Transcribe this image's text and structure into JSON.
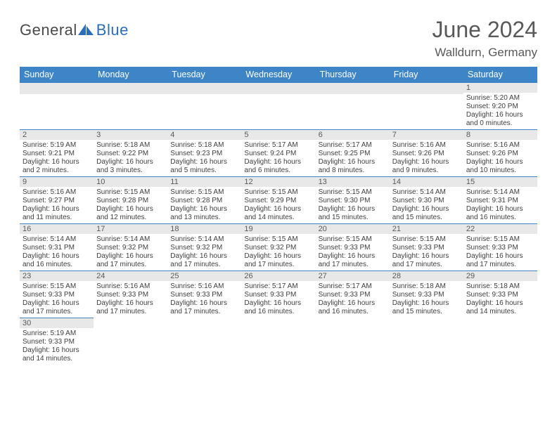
{
  "logo": {
    "text1": "General",
    "text2": "Blue"
  },
  "title": "June 2024",
  "location": "Walldurn, Germany",
  "colors": {
    "header_bg": "#3d85c6",
    "header_fg": "#ffffff",
    "daybar_bg": "#e8e8e8",
    "text": "#404040",
    "title_color": "#595959",
    "border": "#3d85c6"
  },
  "weekdays": [
    "Sunday",
    "Monday",
    "Tuesday",
    "Wednesday",
    "Thursday",
    "Friday",
    "Saturday"
  ],
  "weeks": [
    [
      null,
      null,
      null,
      null,
      null,
      null,
      {
        "n": "1",
        "sunrise": "5:20 AM",
        "sunset": "9:20 PM",
        "dl": "16 hours and 0 minutes."
      }
    ],
    [
      {
        "n": "2",
        "sunrise": "5:19 AM",
        "sunset": "9:21 PM",
        "dl": "16 hours and 2 minutes."
      },
      {
        "n": "3",
        "sunrise": "5:18 AM",
        "sunset": "9:22 PM",
        "dl": "16 hours and 3 minutes."
      },
      {
        "n": "4",
        "sunrise": "5:18 AM",
        "sunset": "9:23 PM",
        "dl": "16 hours and 5 minutes."
      },
      {
        "n": "5",
        "sunrise": "5:17 AM",
        "sunset": "9:24 PM",
        "dl": "16 hours and 6 minutes."
      },
      {
        "n": "6",
        "sunrise": "5:17 AM",
        "sunset": "9:25 PM",
        "dl": "16 hours and 8 minutes."
      },
      {
        "n": "7",
        "sunrise": "5:16 AM",
        "sunset": "9:26 PM",
        "dl": "16 hours and 9 minutes."
      },
      {
        "n": "8",
        "sunrise": "5:16 AM",
        "sunset": "9:26 PM",
        "dl": "16 hours and 10 minutes."
      }
    ],
    [
      {
        "n": "9",
        "sunrise": "5:16 AM",
        "sunset": "9:27 PM",
        "dl": "16 hours and 11 minutes."
      },
      {
        "n": "10",
        "sunrise": "5:15 AM",
        "sunset": "9:28 PM",
        "dl": "16 hours and 12 minutes."
      },
      {
        "n": "11",
        "sunrise": "5:15 AM",
        "sunset": "9:28 PM",
        "dl": "16 hours and 13 minutes."
      },
      {
        "n": "12",
        "sunrise": "5:15 AM",
        "sunset": "9:29 PM",
        "dl": "16 hours and 14 minutes."
      },
      {
        "n": "13",
        "sunrise": "5:15 AM",
        "sunset": "9:30 PM",
        "dl": "16 hours and 15 minutes."
      },
      {
        "n": "14",
        "sunrise": "5:14 AM",
        "sunset": "9:30 PM",
        "dl": "16 hours and 15 minutes."
      },
      {
        "n": "15",
        "sunrise": "5:14 AM",
        "sunset": "9:31 PM",
        "dl": "16 hours and 16 minutes."
      }
    ],
    [
      {
        "n": "16",
        "sunrise": "5:14 AM",
        "sunset": "9:31 PM",
        "dl": "16 hours and 16 minutes."
      },
      {
        "n": "17",
        "sunrise": "5:14 AM",
        "sunset": "9:32 PM",
        "dl": "16 hours and 17 minutes."
      },
      {
        "n": "18",
        "sunrise": "5:14 AM",
        "sunset": "9:32 PM",
        "dl": "16 hours and 17 minutes."
      },
      {
        "n": "19",
        "sunrise": "5:15 AM",
        "sunset": "9:32 PM",
        "dl": "16 hours and 17 minutes."
      },
      {
        "n": "20",
        "sunrise": "5:15 AM",
        "sunset": "9:33 PM",
        "dl": "16 hours and 17 minutes."
      },
      {
        "n": "21",
        "sunrise": "5:15 AM",
        "sunset": "9:33 PM",
        "dl": "16 hours and 17 minutes."
      },
      {
        "n": "22",
        "sunrise": "5:15 AM",
        "sunset": "9:33 PM",
        "dl": "16 hours and 17 minutes."
      }
    ],
    [
      {
        "n": "23",
        "sunrise": "5:15 AM",
        "sunset": "9:33 PM",
        "dl": "16 hours and 17 minutes."
      },
      {
        "n": "24",
        "sunrise": "5:16 AM",
        "sunset": "9:33 PM",
        "dl": "16 hours and 17 minutes."
      },
      {
        "n": "25",
        "sunrise": "5:16 AM",
        "sunset": "9:33 PM",
        "dl": "16 hours and 17 minutes."
      },
      {
        "n": "26",
        "sunrise": "5:17 AM",
        "sunset": "9:33 PM",
        "dl": "16 hours and 16 minutes."
      },
      {
        "n": "27",
        "sunrise": "5:17 AM",
        "sunset": "9:33 PM",
        "dl": "16 hours and 16 minutes."
      },
      {
        "n": "28",
        "sunrise": "5:18 AM",
        "sunset": "9:33 PM",
        "dl": "16 hours and 15 minutes."
      },
      {
        "n": "29",
        "sunrise": "5:18 AM",
        "sunset": "9:33 PM",
        "dl": "16 hours and 14 minutes."
      }
    ],
    [
      {
        "n": "30",
        "sunrise": "5:19 AM",
        "sunset": "9:33 PM",
        "dl": "16 hours and 14 minutes."
      },
      null,
      null,
      null,
      null,
      null,
      null
    ]
  ],
  "labels": {
    "sunrise": "Sunrise:",
    "sunset": "Sunset:",
    "daylight": "Daylight:"
  }
}
